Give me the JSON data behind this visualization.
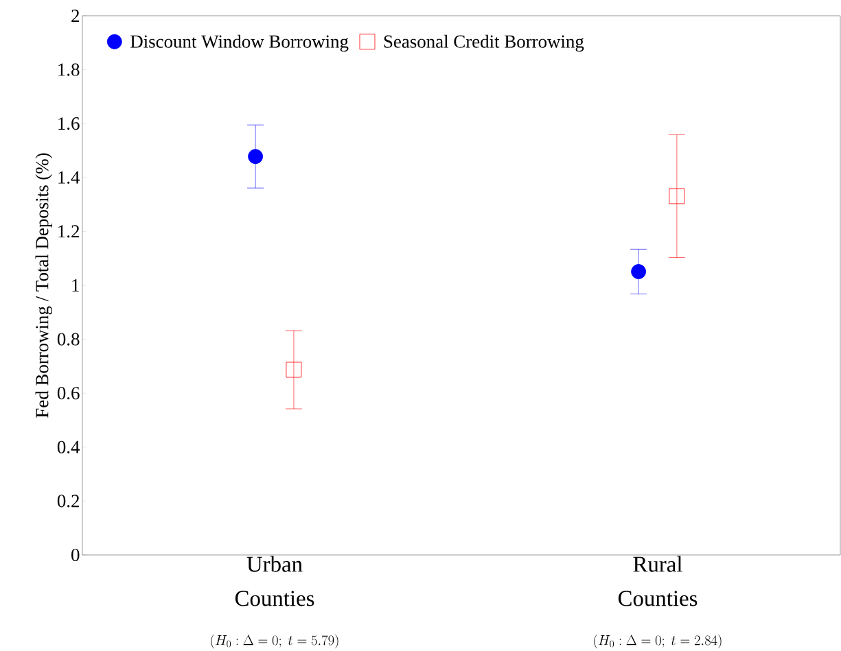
{
  "chart_data": {
    "type": "scatter",
    "ylabel": "Fed Borrowing / Total Deposits (%)",
    "categories": [
      "Urban Counties",
      "Rural Counties"
    ],
    "series": [
      {
        "name": "Discount Window Borrowing",
        "color": "#0000ff",
        "marker": "circle",
        "values": [
          1.478,
          1.051
        ],
        "errors": [
          0.117,
          0.083
        ]
      },
      {
        "name": "Seasonal Credit Borrowing",
        "color": "#ff0000",
        "marker": "square",
        "values": [
          0.687,
          1.331
        ],
        "errors": [
          0.145,
          0.228
        ]
      }
    ],
    "ylim": [
      0,
      2
    ],
    "yticks": [
      0,
      0.2,
      0.4,
      0.6,
      0.8,
      1,
      1.2,
      1.4,
      1.6,
      1.8,
      2
    ],
    "legend": "top left",
    "annotations": [
      "(H_0 : \\Delta = 0;\\ t =5.79)",
      "(H_0 : \\Delta = 0;\\ t =2.84)"
    ]
  }
}
